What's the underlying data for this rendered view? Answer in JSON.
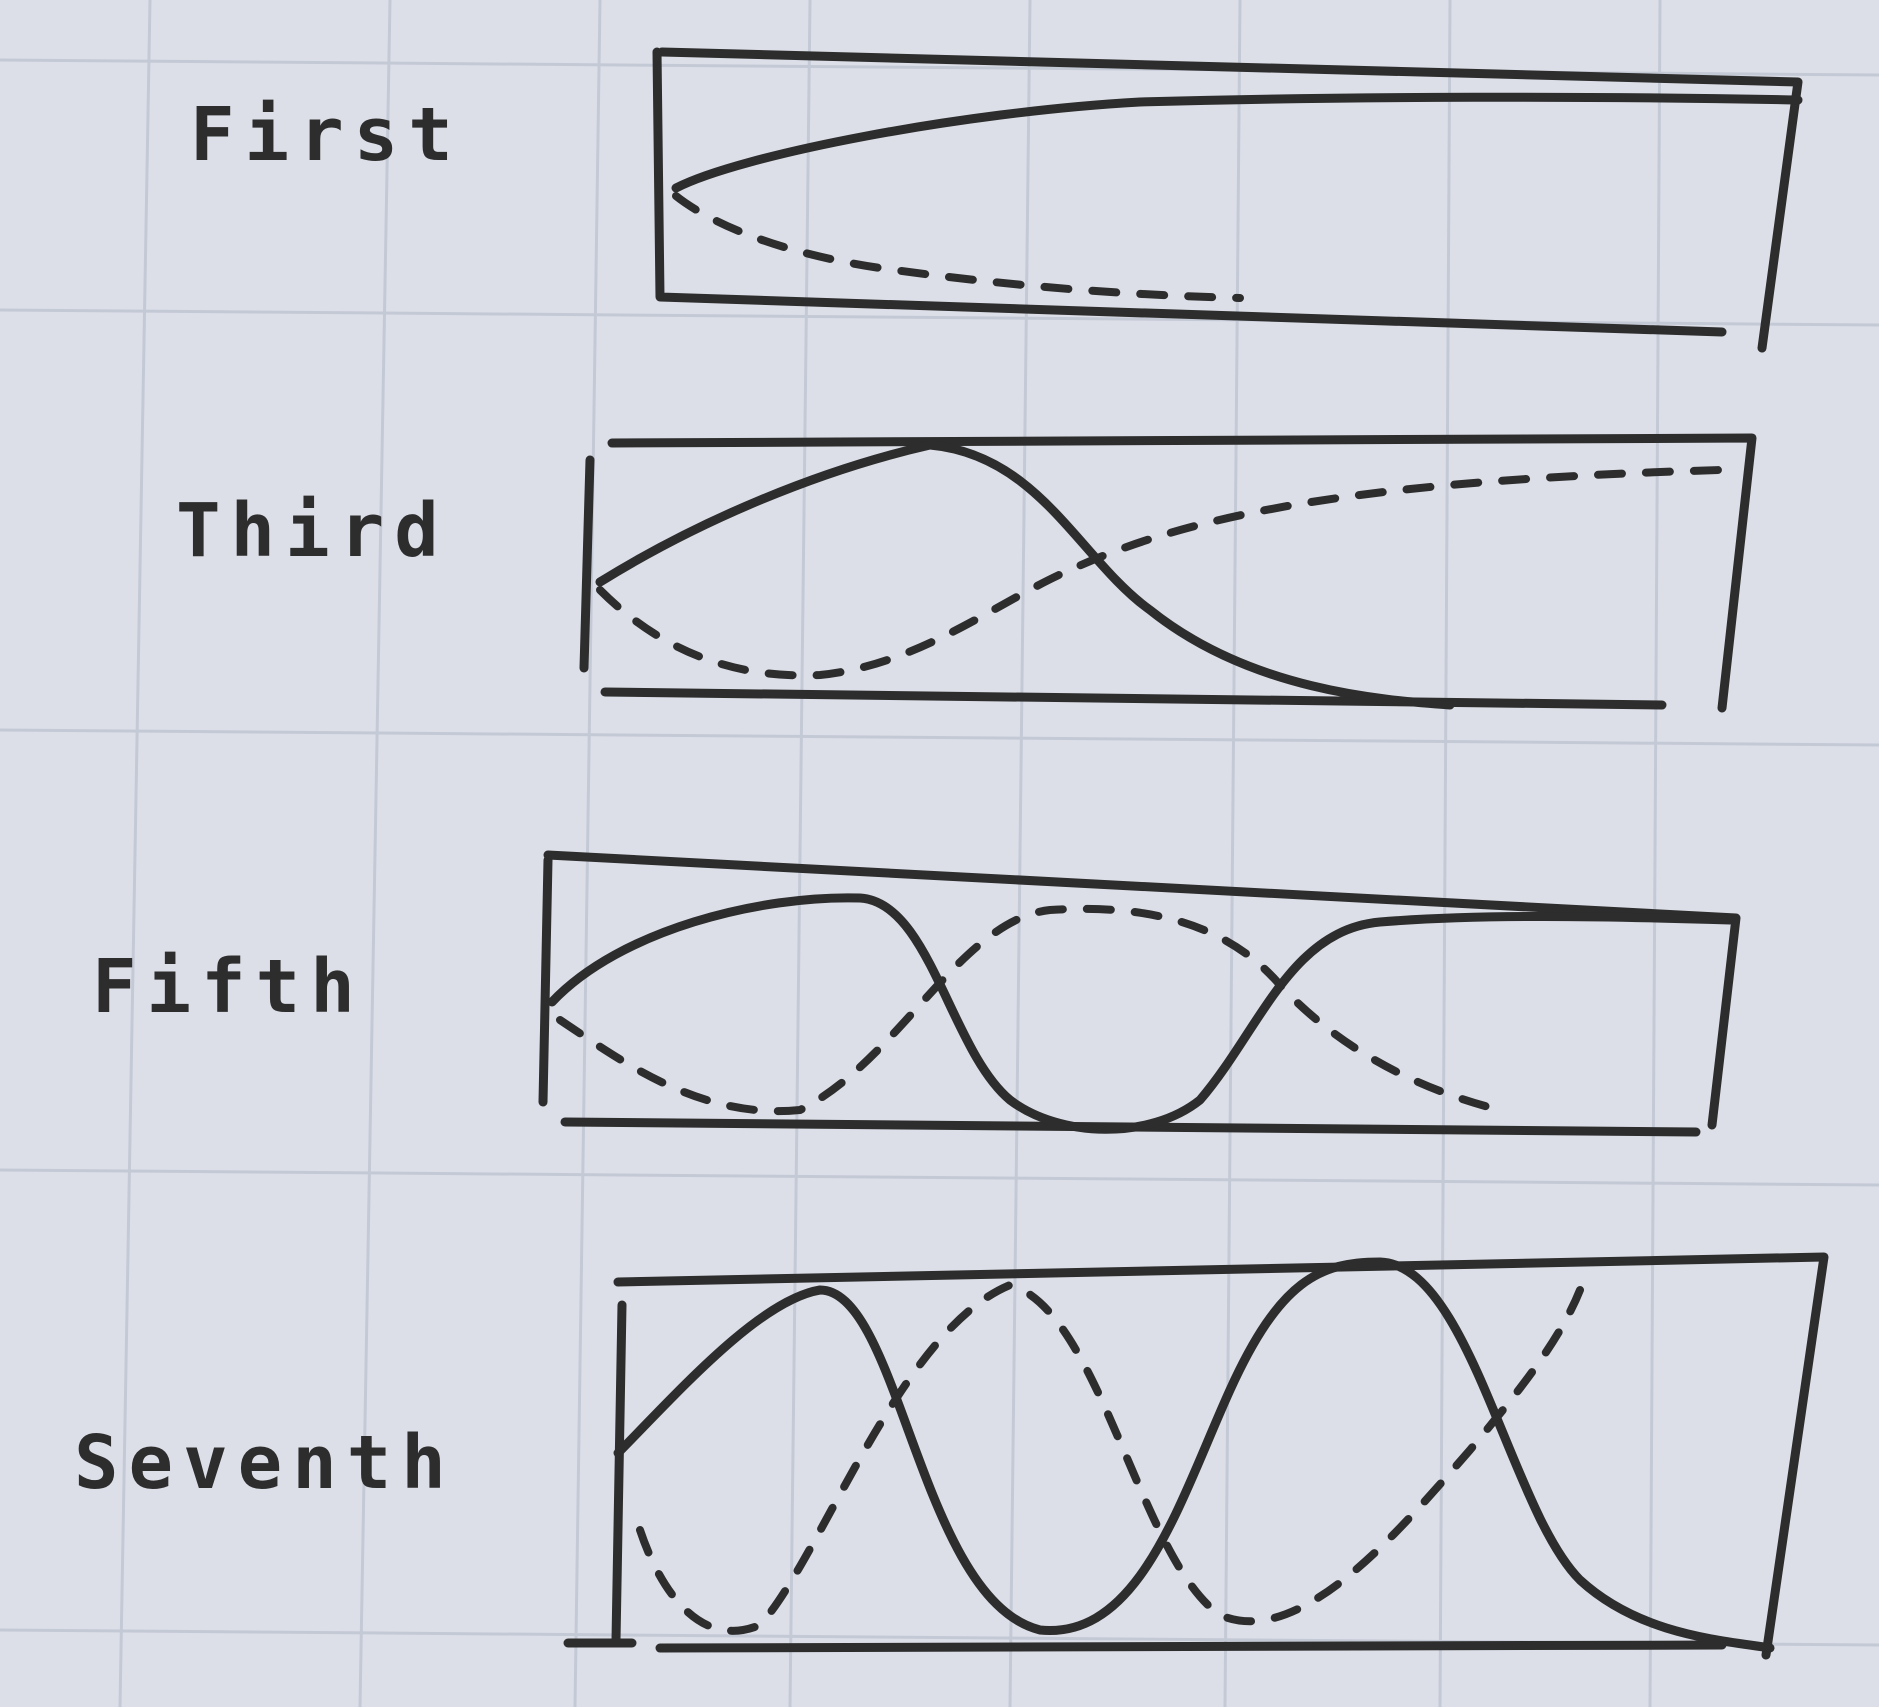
{
  "labels": {
    "first": "First",
    "third": "Third",
    "fifth": "Fifth",
    "seventh": "Seventh"
  },
  "colors": {
    "paper": "#dcdfe8",
    "grid": "#c4c9d6",
    "ink": "#2d2d2d"
  },
  "panels": [
    {
      "name": "first",
      "solid": "rises from mid-low to top and stays near top",
      "dashed": "falls from mid-low to bottom"
    },
    {
      "name": "third",
      "solid": "single hump, then decays to bottom",
      "dashed": "dip, then rises to top"
    },
    {
      "name": "fifth",
      "solid": "hump, dip to bottom, rises back to top",
      "dashed": "dip, peak at top, falls back to bottom"
    },
    {
      "name": "seventh",
      "solid": "two humps with dips to bottom",
      "dashed": "two dips with a peak between"
    }
  ]
}
